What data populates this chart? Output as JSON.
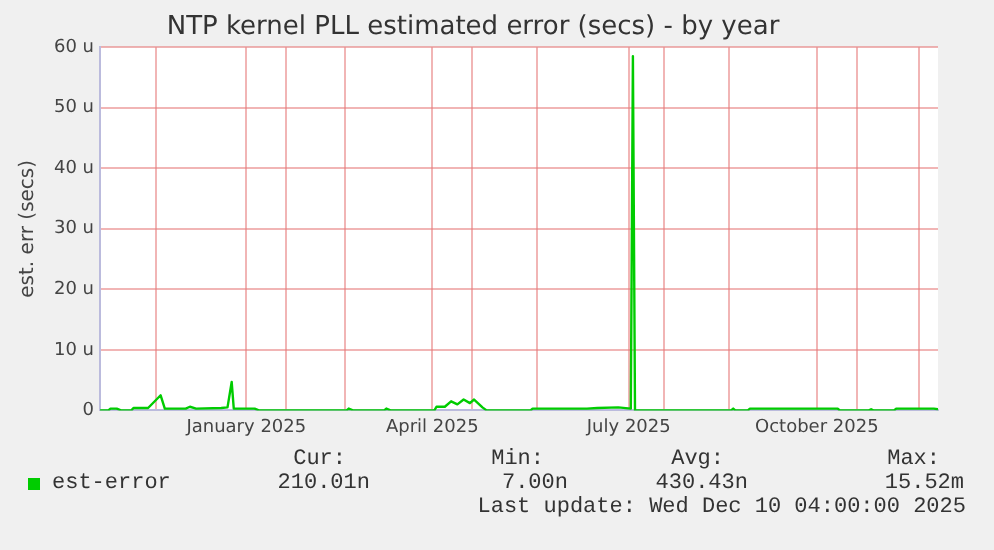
{
  "chart_data": {
    "type": "line",
    "title": "NTP kernel PLL estimated error (secs) - by year",
    "ylabel": "est. err (secs)",
    "xlim": [
      "2024-11-04",
      "2025-12-10"
    ],
    "xticks": [
      {
        "value": "2024-12-01",
        "label": null
      },
      {
        "value": "2025-01-13",
        "label": "January 2025"
      },
      {
        "value": "2025-02-01",
        "label": null
      },
      {
        "value": "2025-03-01",
        "label": null
      },
      {
        "value": "2025-04-12",
        "label": "April 2025"
      },
      {
        "value": "2025-05-01",
        "label": null
      },
      {
        "value": "2025-06-01",
        "label": null
      },
      {
        "value": "2025-07-15",
        "label": "July 2025"
      },
      {
        "value": "2025-08-01",
        "label": null
      },
      {
        "value": "2025-09-01",
        "label": null
      },
      {
        "value": "2025-10-13",
        "label": "October 2025"
      },
      {
        "value": "2025-11-01",
        "label": null
      },
      {
        "value": "2025-12-01",
        "label": null
      }
    ],
    "ylim": [
      0,
      60
    ],
    "yticks": [
      0,
      {
        "value": 10,
        "label": "10 u"
      },
      {
        "value": 20,
        "label": "20 u"
      },
      {
        "value": 30,
        "label": "30 u"
      },
      {
        "value": 40,
        "label": "40 u"
      },
      {
        "value": 50,
        "label": "50 u"
      },
      {
        "value": 60,
        "label": "60 u"
      }
    ],
    "grid": true,
    "legend": "bottom left",
    "marker": "none",
    "line_style": "solid",
    "x": [
      "2024-11-04",
      "2024-11-08",
      "2024-11-09",
      "2024-11-12",
      "2024-11-14",
      "2024-11-19",
      "2024-11-20",
      "2024-11-27",
      "2024-12-03",
      "2024-12-05",
      "2024-12-15",
      "2024-12-17",
      "2024-12-20",
      "2025-01-01",
      "2025-01-04",
      "2025-01-06",
      "2025-01-07",
      "2025-01-17",
      "2025-01-19",
      "2025-03-02",
      "2025-03-03",
      "2025-03-05",
      "2025-03-20",
      "2025-03-21",
      "2025-03-23",
      "2025-04-13",
      "2025-04-14",
      "2025-04-18",
      "2025-04-21",
      "2025-04-24",
      "2025-04-27",
      "2025-04-30",
      "2025-05-02",
      "2025-05-06",
      "2025-05-08",
      "2025-05-29",
      "2025-05-30",
      "2025-06-25",
      "2025-06-30",
      "2025-07-10",
      "2025-07-16",
      "2025-07-17",
      "2025-07-18",
      "2025-09-02",
      "2025-09-03",
      "2025-09-04",
      "2025-09-10",
      "2025-09-11",
      "2025-10-23",
      "2025-10-24",
      "2025-11-07",
      "2025-11-08",
      "2025-11-09",
      "2025-11-19",
      "2025-11-20",
      "2025-12-08",
      "2025-12-10"
    ],
    "series": [
      {
        "name": "est-error",
        "color": "#00cc00",
        "values": [
          0,
          0,
          0.3,
          0.3,
          0,
          0,
          0.4,
          0.4,
          2.5,
          0.3,
          0.3,
          0.6,
          0.3,
          0.4,
          0.5,
          4.7,
          0.3,
          0.3,
          0,
          0,
          0.3,
          0,
          0,
          0.3,
          0,
          0,
          0.6,
          0.6,
          1.5,
          1,
          1.8,
          1.2,
          1.8,
          0.5,
          0,
          0,
          0.3,
          0.3,
          0.4,
          0.5,
          0.3,
          58.5,
          0,
          0,
          0.3,
          0,
          0,
          0.3,
          0.3,
          0,
          0,
          0.2,
          0,
          0,
          0.3,
          0.3,
          0.2
        ]
      }
    ],
    "annotations": [
      "Cur:",
      "Min:",
      "Avg:",
      "Max:",
      "210.01n",
      "7.00n",
      "430.43n",
      "15.52m",
      "Last update: Wed Dec 10 04:00:00 2025"
    ]
  }
}
